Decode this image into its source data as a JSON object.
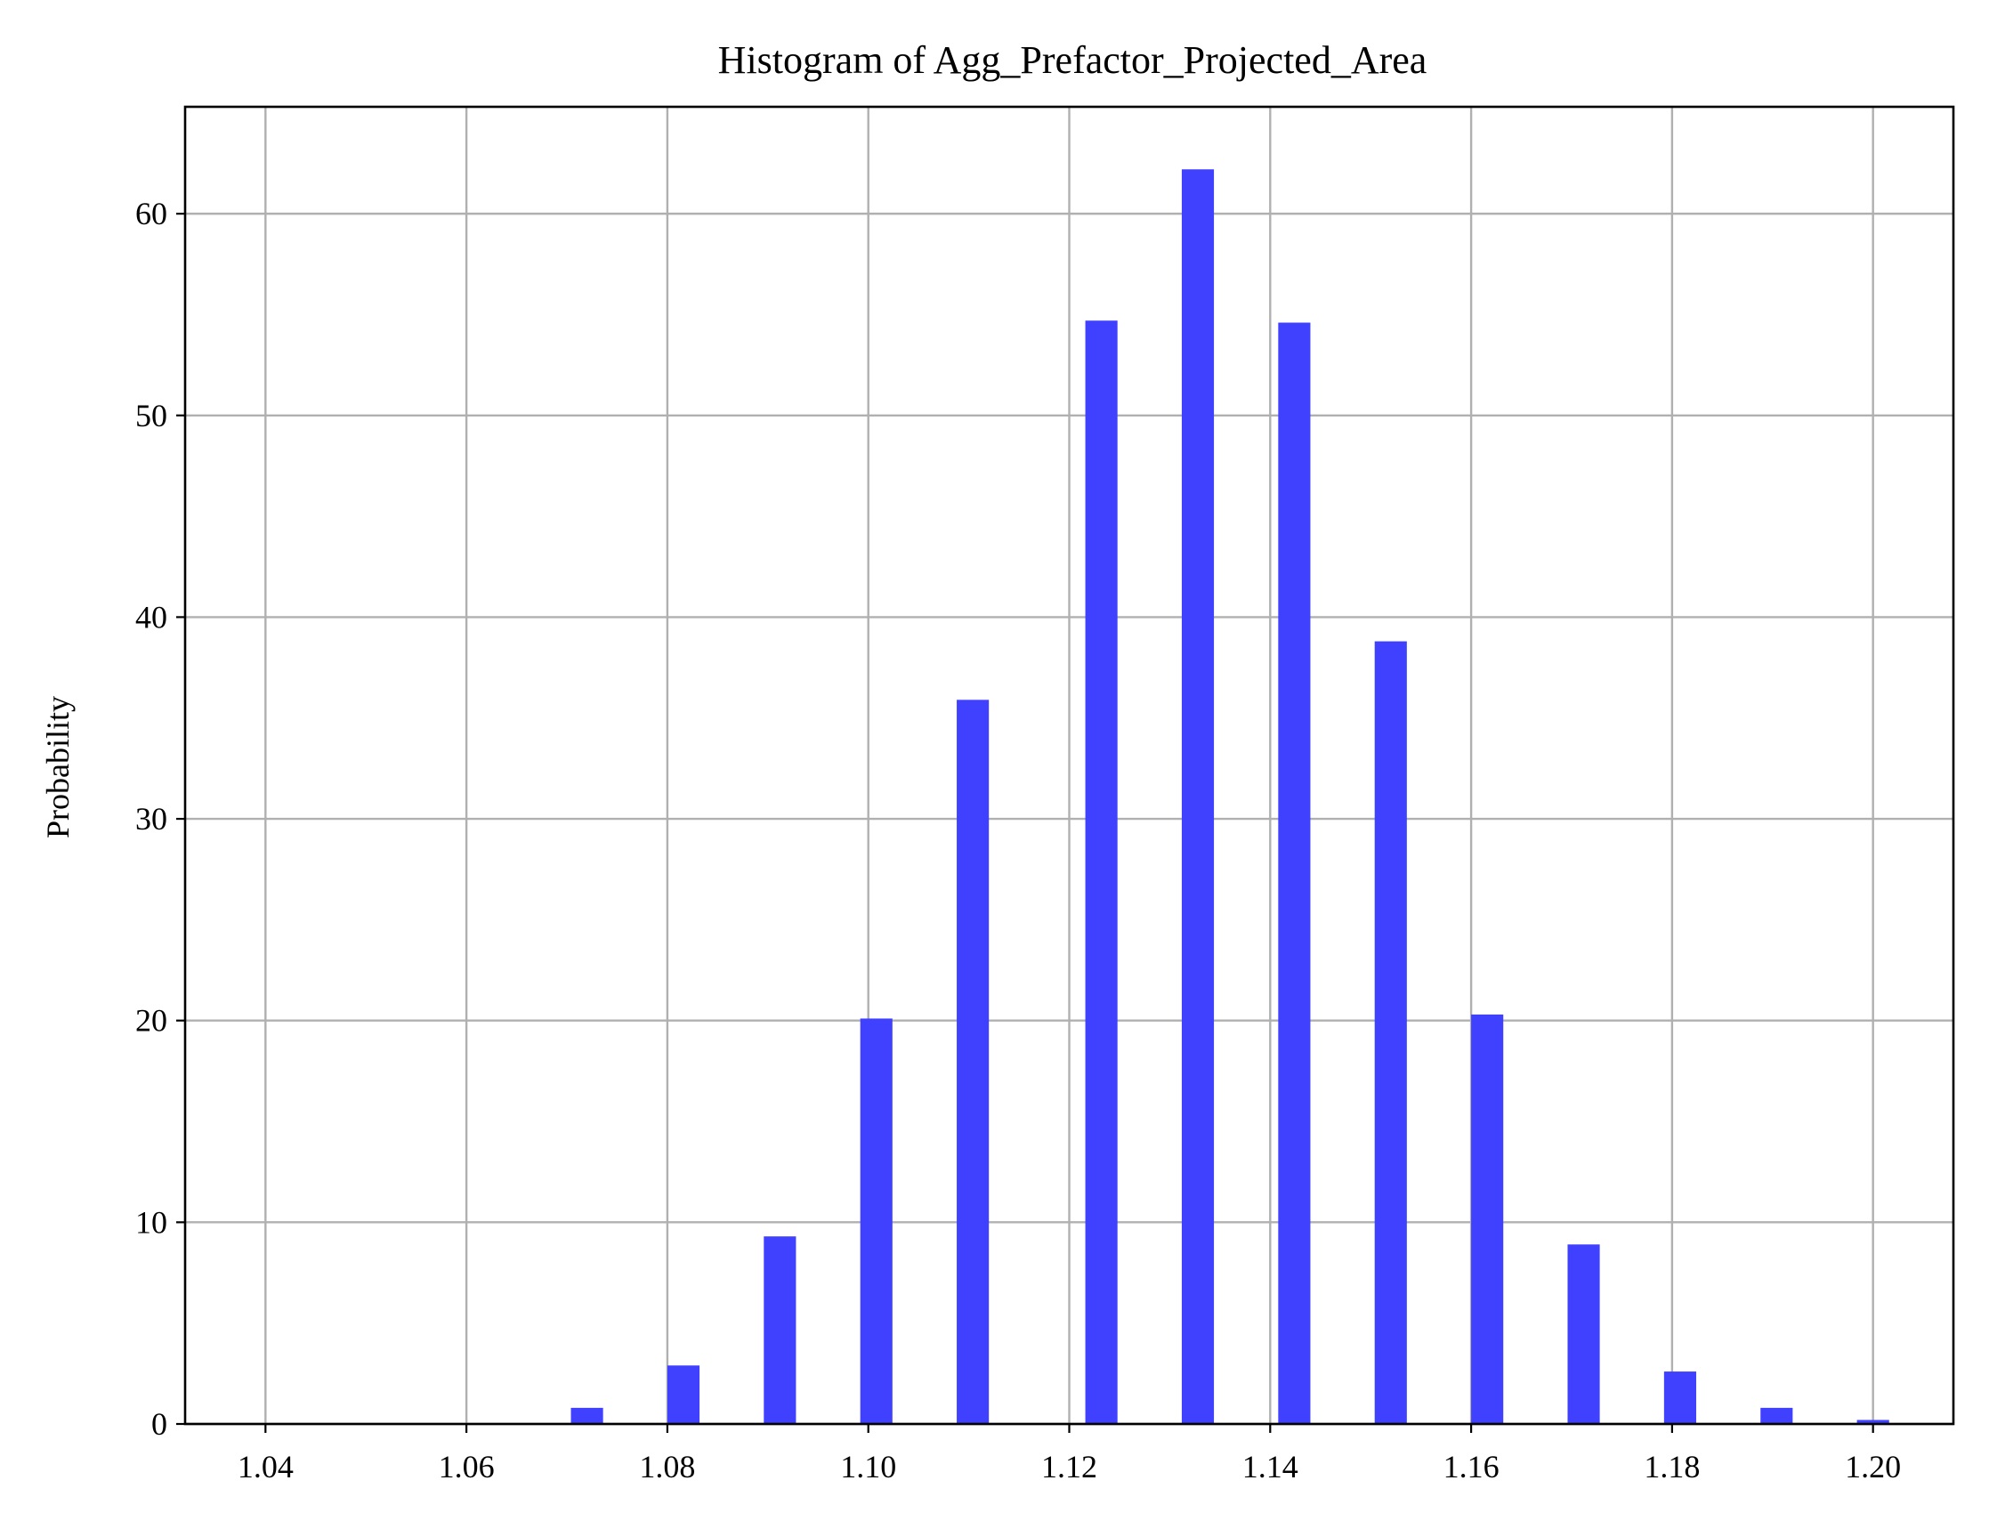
{
  "chart_data": {
    "type": "bar",
    "title": "Histogram of Agg_Prefactor_Projected_Area",
    "xlabel": "",
    "ylabel": "Probability",
    "xlim": [
      1.032,
      1.208
    ],
    "ylim": [
      0,
      65.3
    ],
    "xticks": [
      "1.04",
      "1.06",
      "1.08",
      "1.10",
      "1.12",
      "1.14",
      "1.16",
      "1.18",
      "1.20"
    ],
    "xtick_values": [
      1.04,
      1.06,
      1.08,
      1.1,
      1.12,
      1.14,
      1.16,
      1.18,
      1.2
    ],
    "yticks": [
      "0",
      "10",
      "20",
      "30",
      "40",
      "50",
      "60"
    ],
    "ytick_values": [
      0,
      10,
      20,
      30,
      40,
      50,
      60
    ],
    "grid": true,
    "bar_color": "#4040ff",
    "bin_width": 0.0032,
    "series": [
      {
        "bins_left": [
          1.0704,
          1.08,
          1.0896,
          1.0992,
          1.1088,
          1.1216,
          1.1312,
          1.1408,
          1.1504,
          1.16,
          1.1696,
          1.1792,
          1.1888,
          1.1984
        ],
        "values": [
          0.8,
          2.9,
          9.3,
          20.1,
          35.9,
          54.7,
          62.2,
          54.6,
          38.8,
          20.3,
          8.9,
          2.6,
          0.8,
          0.2
        ]
      }
    ]
  }
}
